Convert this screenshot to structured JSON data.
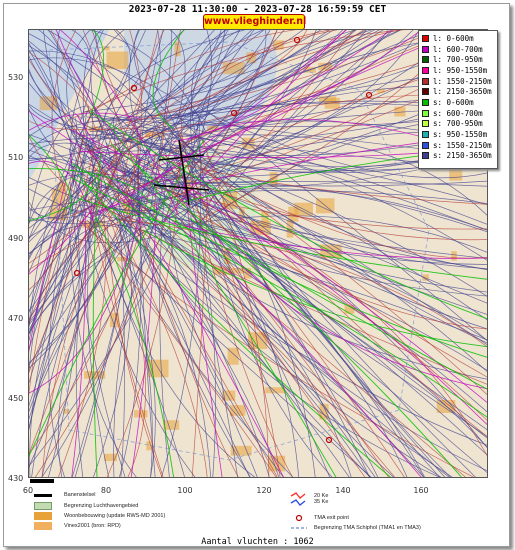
{
  "header": {
    "time_range": "2023-07-28 11:30:00 - 2023-07-28 16:59:59 CET",
    "site": "www.vlieghinder.nl"
  },
  "axes": {
    "y_ticks": [
      "530",
      "510",
      "490",
      "470",
      "450",
      "430"
    ],
    "x_ticks": [
      "60",
      "80",
      "100",
      "120",
      "140",
      "160"
    ]
  },
  "altitude_legend": [
    {
      "label": "l: 0-600m",
      "color": "#e00000"
    },
    {
      "label": "l: 600-700m",
      "color": "#c000c0"
    },
    {
      "label": "l: 700-950m",
      "color": "#006000"
    },
    {
      "label": "l: 950-1550m",
      "color": "#ff00a0"
    },
    {
      "label": "l: 1550-2150m",
      "color": "#b03030"
    },
    {
      "label": "l: 2150-3650m",
      "color": "#600000"
    },
    {
      "label": "s: 0-600m",
      "color": "#00c000"
    },
    {
      "label": "s: 600-700m",
      "color": "#80ff40"
    },
    {
      "label": "s: 700-950m",
      "color": "#c0ff40"
    },
    {
      "label": "s: 950-1550m",
      "color": "#20b0b0"
    },
    {
      "label": "s: 1550-2150m",
      "color": "#3050e0"
    },
    {
      "label": "s: 2150-3650m",
      "color": "#404090"
    }
  ],
  "map_legend": {
    "runway": "Banenstelsel",
    "airport_boundary": "Begrenzing Luchthavengebied",
    "housing": "Woonbebouwing (update RWS-MD 2001)",
    "vinex": "Vinex2001 (bron: RPD)",
    "kv20": "20 Ke",
    "kv35": "35 Ke",
    "tma_exit": "TMA exit point",
    "tma_boundary": "Begrenzing TMA Schiphol  (TMA1 en TMA3)"
  },
  "footer": {
    "flights": "Aantal vluchten : 1062"
  },
  "colors": {
    "map_background": "#efe4cf",
    "water": "#c8d6e6",
    "airport_area": "#d8e8c8",
    "housing": "#e7a33a",
    "track_blue": "#404090",
    "track_red": "#b03030",
    "track_magenta": "#c000c0",
    "track_green": "#00c000"
  }
}
